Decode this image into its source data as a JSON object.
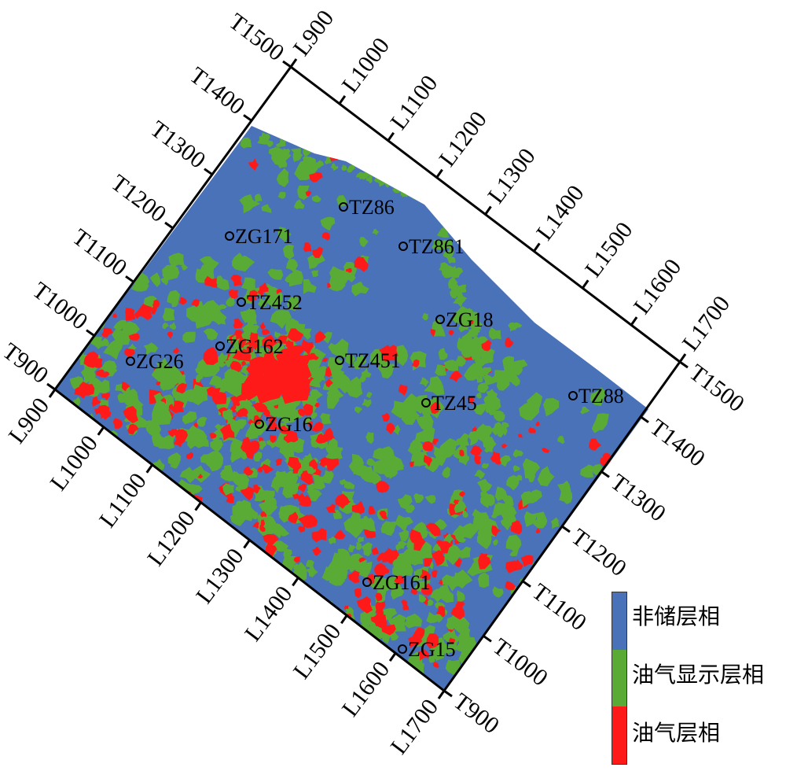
{
  "colors": {
    "non_reservoir": "#4a72b8",
    "oil_gas_show": "#5aab35",
    "oil_gas": "#ff1a1a",
    "frame": "#000000"
  },
  "inline_labels": [
    "L900",
    "L1000",
    "L1100",
    "L1200",
    "L1300",
    "L1400",
    "L1500",
    "L1600",
    "L1700"
  ],
  "trace_labels": [
    "T900",
    "T1000",
    "T1100",
    "T1200",
    "T1300",
    "T1400",
    "T1500"
  ],
  "wells": [
    {
      "name": "TZ86"
    },
    {
      "name": "ZG171"
    },
    {
      "name": "TZ861"
    },
    {
      "name": "TZ452"
    },
    {
      "name": "ZG18"
    },
    {
      "name": "ZG162"
    },
    {
      "name": "ZG26"
    },
    {
      "name": "TZ451"
    },
    {
      "name": "TZ45"
    },
    {
      "name": "TZ88"
    },
    {
      "name": "ZG16"
    },
    {
      "name": "ZG161"
    },
    {
      "name": "ZG15"
    }
  ],
  "legend": [
    {
      "label": "非储层相",
      "color": "#4a72b8"
    },
    {
      "label": "油气显示层相",
      "color": "#5aab35"
    },
    {
      "label": "油气层相",
      "color": "#ff1a1a"
    }
  ]
}
